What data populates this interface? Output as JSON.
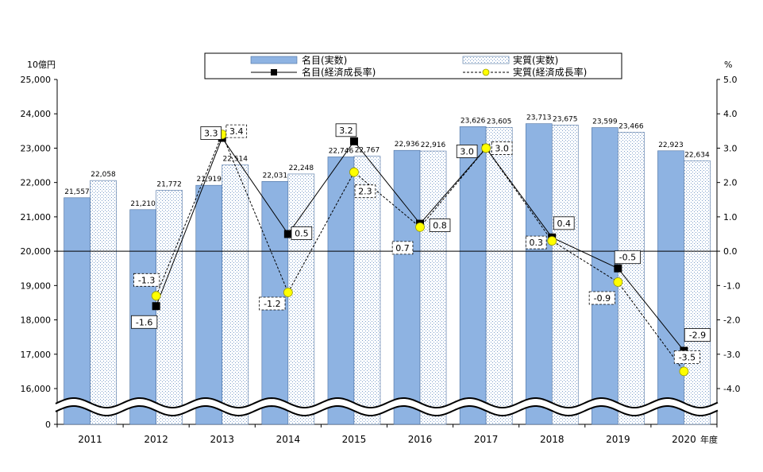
{
  "chart_data": {
    "type": "bar+line",
    "categories": [
      "2011",
      "2012",
      "2013",
      "2014",
      "2015",
      "2016",
      "2017",
      "2018",
      "2019",
      "2020"
    ],
    "left_axis": {
      "unit": "10億円",
      "ticks": [
        "25,000",
        "24,000",
        "23,000",
        "22,000",
        "21,000",
        "20,000",
        "19,000",
        "18,000",
        "17,000",
        "16,000",
        "0"
      ],
      "ylim": [
        16000,
        25000
      ],
      "broken": true,
      "bottom_label": "0"
    },
    "right_axis": {
      "unit": "%",
      "ticks": [
        "5.0",
        "4.0",
        "3.0",
        "2.0",
        "1.0",
        "0.0",
        "-1.0",
        "-2.0",
        "-3.0",
        "-4.0"
      ],
      "ylim": [
        -4.5,
        5.0
      ]
    },
    "x_unit": "年度",
    "series": [
      {
        "name": "名目(実数)",
        "kind": "bar",
        "color": "#8eb3e2",
        "values": [
          21557,
          21210,
          21919,
          22031,
          22746,
          22936,
          23626,
          23713,
          23599,
          22923
        ],
        "labels": [
          "21,557",
          "21,210",
          "21,919",
          "22,031",
          "22,746",
          "22,936",
          "23,626",
          "23,713",
          "23,599",
          "22,923"
        ]
      },
      {
        "name": "実質(実数)",
        "kind": "bar",
        "color": "#dde8f5",
        "values": [
          22058,
          21772,
          22514,
          22248,
          22767,
          22916,
          23605,
          23675,
          23466,
          22634
        ],
        "labels": [
          "22,058",
          "21,772",
          "22,514",
          "22,248",
          "22,767",
          "22,916",
          "23,605",
          "23,675",
          "23,466",
          "22,634"
        ]
      },
      {
        "name": "名目(経済成長率)",
        "kind": "line",
        "marker": "square",
        "color": "#000000",
        "values": [
          null,
          -1.6,
          3.3,
          0.5,
          3.2,
          0.8,
          3.0,
          0.4,
          -0.5,
          -2.9
        ],
        "labels": [
          "",
          "-1.6",
          "3.3",
          "0.5",
          "3.2",
          "0.8",
          "3.0",
          "0.4",
          "-0.5",
          "-2.9"
        ]
      },
      {
        "name": "実質(経済成長率)",
        "kind": "line",
        "marker": "circle",
        "color": "#ffff00",
        "dashed": true,
        "values": [
          null,
          -1.3,
          3.4,
          -1.2,
          2.3,
          0.7,
          3.0,
          0.3,
          -0.9,
          -3.5
        ],
        "labels": [
          "",
          "-1.3",
          "3.4",
          "-1.2",
          "2.3",
          "0.7",
          "3.0",
          "0.3",
          "-0.9",
          "-3.5"
        ]
      }
    ],
    "legend": [
      "名目(実数)",
      "実質(実数)",
      "名目(経済成長率)",
      "実質(経済成長率)"
    ],
    "legend_position": "top",
    "zero_line": true
  }
}
